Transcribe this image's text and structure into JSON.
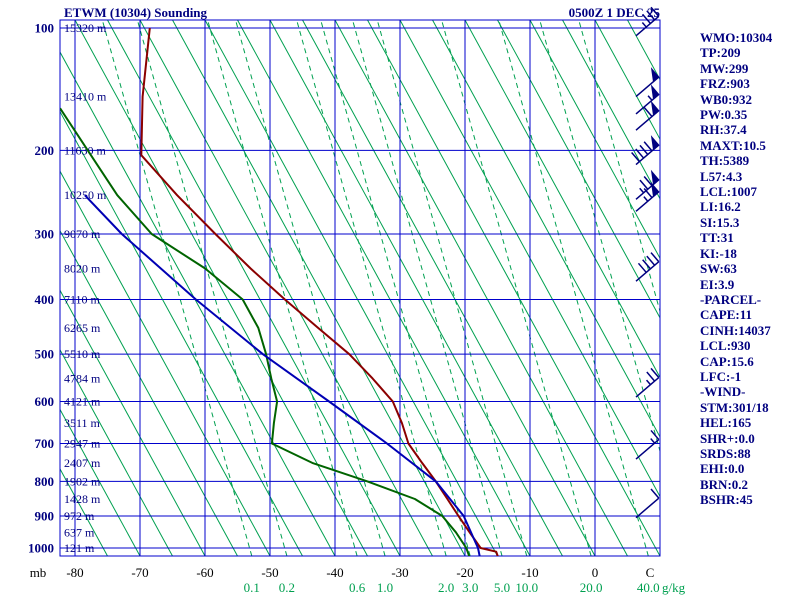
{
  "header": {
    "title": "ETWM (10304) Sounding",
    "datetime": "0500Z  1 DEC 25"
  },
  "stats_panel": {
    "color": "#000080",
    "lines": [
      "WMO:10304",
      "TP:209",
      "MW:299",
      "FRZ:903",
      "WB0:932",
      "PW:0.35",
      "RH:37.4",
      "MAXT:10.5",
      "TH:5389",
      "L57:4.3",
      "LCL:1007",
      "LI:16.2",
      "SI:15.3",
      "TT:31",
      "KI:-18",
      "SW:63",
      "EI:3.9",
      "-PARCEL-",
      "CAPE:11",
      "CINH:14037",
      "LCL:930",
      "CAP:15.6",
      "LFC:-1",
      "-WIND-",
      "STM:301/18",
      "HEL:165",
      "SHR+:0.0",
      "SRDS:88",
      "EHI:0.0",
      "BRN:0.2",
      "BSHR:45"
    ]
  },
  "chart_data": {
    "type": "line",
    "chart_kind": "stuve-sounding",
    "title": "ETWM (10304) Sounding",
    "timestamp": "0500Z  1 DEC 25",
    "grid_color": "#0000CC",
    "pressure_axis": {
      "unit": "mb",
      "scale": "p^0.286",
      "ticks": [
        100,
        200,
        300,
        400,
        500,
        600,
        700,
        800,
        900,
        1000
      ],
      "top_mb": 95,
      "bottom_mb": 1030
    },
    "temp_axis": {
      "unit": "C",
      "min": -80,
      "max": 10,
      "ticks": [
        -80,
        -70,
        -60,
        -50,
        -40,
        -30,
        -20,
        -10,
        0
      ]
    },
    "height_labels": [
      {
        "p": 100,
        "label": "15320 m"
      },
      {
        "p": 150,
        "label": "13410 m"
      },
      {
        "p": 200,
        "label": "11630 m"
      },
      {
        "p": 250,
        "label": "10250 m"
      },
      {
        "p": 300,
        "label": "9070 m"
      },
      {
        "p": 350,
        "label": "8020 m"
      },
      {
        "p": 400,
        "label": "7110 m"
      },
      {
        "p": 450,
        "label": "6265 m"
      },
      {
        "p": 500,
        "label": "5510 m"
      },
      {
        "p": 550,
        "label": "4784 m"
      },
      {
        "p": 600,
        "label": "4121 m"
      },
      {
        "p": 650,
        "label": "3511 m"
      },
      {
        "p": 700,
        "label": "2947 m"
      },
      {
        "p": 750,
        "label": "2407 m"
      },
      {
        "p": 800,
        "label": "1902 m"
      },
      {
        "p": 850,
        "label": "1428 m"
      },
      {
        "p": 900,
        "label": "972 m"
      },
      {
        "p": 950,
        "label": "637 m"
      },
      {
        "p": 1000,
        "label": "121 m"
      }
    ],
    "isopleths": {
      "dry_adiabats": {
        "style": "solid",
        "color": "#00A050",
        "bottom_start_c": -75,
        "bottom_end_c": 55,
        "step_c": 5,
        "lean_c": 45
      },
      "mixing_ratio": {
        "style": "dashed",
        "color": "#00A050",
        "unit": "g/kg",
        "lean_c": 23,
        "lines": [
          {
            "label": "0.1",
            "bottom_c": -52.8
          },
          {
            "label": "0.2",
            "bottom_c": -47.4
          },
          {
            "label": "0.6",
            "bottom_c": -36.6
          },
          {
            "label": "1.0",
            "bottom_c": -32.3
          },
          {
            "label": "2.0",
            "bottom_c": -22.9
          },
          {
            "label": "3.0",
            "bottom_c": -19.2
          },
          {
            "label": "5.0",
            "bottom_c": -14.3
          },
          {
            "label": "10.0",
            "bottom_c": -10.5
          },
          {
            "label": "20.0",
            "bottom_c": -0.6
          },
          {
            "label": "40.0",
            "bottom_c": 8.2
          },
          {
            "label": "",
            "bottom_c": 14.5
          },
          {
            "label": "",
            "bottom_c": 20.5
          }
        ]
      }
    },
    "series": [
      {
        "name": "temperature",
        "color": "#8B0000",
        "points": [
          [
            100,
            -68.5
          ],
          [
            150,
            -69.6
          ],
          [
            205,
            -69.8
          ],
          [
            250,
            -64.3
          ],
          [
            300,
            -58.4
          ],
          [
            350,
            -53.0
          ],
          [
            400,
            -47.7
          ],
          [
            450,
            -42.6
          ],
          [
            500,
            -37.8
          ],
          [
            550,
            -34.2
          ],
          [
            600,
            -31.1
          ],
          [
            650,
            -29.7
          ],
          [
            700,
            -28.7
          ],
          [
            750,
            -26.6
          ],
          [
            800,
            -24.5
          ],
          [
            850,
            -22.7
          ],
          [
            900,
            -21.0
          ],
          [
            950,
            -19.3
          ],
          [
            1000,
            -17.6
          ],
          [
            1012,
            -15.2
          ],
          [
            1030,
            -14.9
          ]
        ]
      },
      {
        "name": "dewpoint",
        "color": "#006400",
        "points": [
          [
            160,
            -82.3
          ],
          [
            215,
            -76.6
          ],
          [
            250,
            -73.5
          ],
          [
            300,
            -68.2
          ],
          [
            350,
            -60.0
          ],
          [
            400,
            -54.2
          ],
          [
            450,
            -51.8
          ],
          [
            500,
            -50.6
          ],
          [
            550,
            -49.8
          ],
          [
            600,
            -48.9
          ],
          [
            650,
            -49.4
          ],
          [
            700,
            -49.7
          ],
          [
            750,
            -43.5
          ],
          [
            800,
            -35.0
          ],
          [
            850,
            -27.7
          ],
          [
            900,
            -23.5
          ],
          [
            950,
            -21.4
          ],
          [
            1000,
            -19.8
          ],
          [
            1030,
            -19.3
          ]
        ]
      },
      {
        "name": "parcel",
        "color": "#0000B4",
        "points": [
          [
            250,
            -78.5
          ],
          [
            300,
            -72.8
          ],
          [
            400,
            -61.4
          ],
          [
            500,
            -51.1
          ],
          [
            600,
            -40.9
          ],
          [
            700,
            -32.0
          ],
          [
            800,
            -24.5
          ],
          [
            900,
            -20.2
          ],
          [
            1000,
            -18.0
          ],
          [
            1030,
            -17.7
          ]
        ]
      }
    ],
    "wind_barbs": {
      "color": "#000080",
      "levels": [
        {
          "p": 105,
          "kt": 35
        },
        {
          "p": 150,
          "kt": 50
        },
        {
          "p": 165,
          "kt": 55
        },
        {
          "p": 180,
          "kt": 60
        },
        {
          "p": 215,
          "kt": 90
        },
        {
          "p": 255,
          "kt": 75
        },
        {
          "p": 270,
          "kt": 65
        },
        {
          "p": 370,
          "kt": 40
        },
        {
          "p": 590,
          "kt": 25
        },
        {
          "p": 740,
          "kt": 15
        },
        {
          "p": 905,
          "kt": 10
        }
      ]
    }
  }
}
